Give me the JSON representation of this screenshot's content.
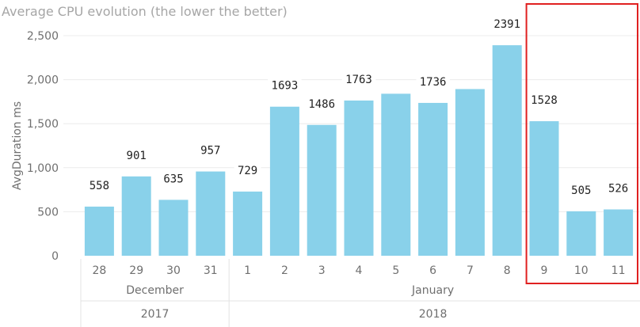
{
  "chart_data": {
    "type": "bar",
    "title": "Average CPU evolution (the lower the better)",
    "ylabel": "AvgDuration ms",
    "xlabel": "",
    "ylim": [
      0,
      2500
    ],
    "yticks": [
      0,
      500,
      1000,
      1500,
      2000,
      2500
    ],
    "ytick_labels": [
      "0",
      "500",
      "1,000",
      "1,500",
      "2,000",
      "2,500"
    ],
    "grid": true,
    "categories": [
      "28",
      "29",
      "30",
      "31",
      "1",
      "2",
      "3",
      "4",
      "5",
      "6",
      "7",
      "8",
      "9",
      "10",
      "11"
    ],
    "values": [
      558,
      901,
      635,
      957,
      729,
      1693,
      1486,
      1763,
      1840,
      1736,
      1893,
      2391,
      1528,
      505,
      526
    ],
    "data_labels": [
      "558",
      "901",
      "635",
      "957",
      "729",
      "1693",
      "1486",
      "1763",
      "",
      "1736",
      "",
      "2391",
      "1528",
      "505",
      "526"
    ],
    "month_groups": [
      {
        "label": "December",
        "start": 0,
        "end": 3
      },
      {
        "label": "January",
        "start": 4,
        "end": 14
      }
    ],
    "year_groups": [
      {
        "label": "2017",
        "start": 0,
        "end": 3
      },
      {
        "label": "2018",
        "start": 4,
        "end": 14
      }
    ],
    "highlight": {
      "start": 12,
      "end": 14,
      "color": "#e02020"
    },
    "bar_color": "#89d1ea"
  }
}
